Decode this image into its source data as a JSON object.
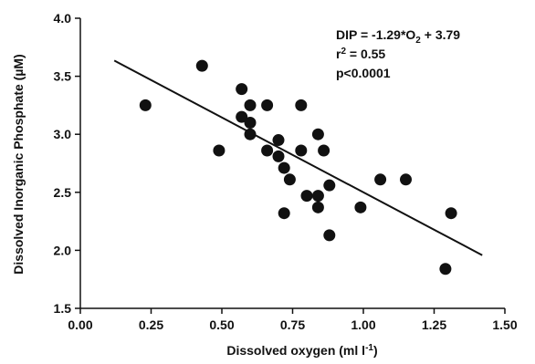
{
  "chart_data": {
    "type": "scatter",
    "title": "",
    "xlabel": "Dissolved oxygen (ml l-1)",
    "xlabel_parts": {
      "main": "Dissolved oxygen (ml l",
      "sup": "-1",
      "close": ")"
    },
    "ylabel": "Dissolved Inorganic Phosphate (µM)",
    "xlim": [
      0.0,
      1.5
    ],
    "ylim": [
      1.5,
      4.0
    ],
    "x_ticks": [
      "0.00",
      "0.25",
      "0.50",
      "0.75",
      "1.00",
      "1.25",
      "1.50"
    ],
    "y_ticks": [
      "1.5",
      "2.0",
      "2.5",
      "3.0",
      "3.5",
      "4.0"
    ],
    "grid": false,
    "legend": "none",
    "colors": {
      "points": "#111111",
      "line": "#111111"
    },
    "points": [
      {
        "x": 0.23,
        "y": 3.25
      },
      {
        "x": 0.43,
        "y": 3.59
      },
      {
        "x": 0.49,
        "y": 2.86
      },
      {
        "x": 0.57,
        "y": 3.39
      },
      {
        "x": 0.57,
        "y": 3.15
      },
      {
        "x": 0.6,
        "y": 3.25
      },
      {
        "x": 0.6,
        "y": 3.1
      },
      {
        "x": 0.6,
        "y": 3.0
      },
      {
        "x": 0.66,
        "y": 3.25
      },
      {
        "x": 0.66,
        "y": 2.86
      },
      {
        "x": 0.7,
        "y": 2.95
      },
      {
        "x": 0.7,
        "y": 2.81
      },
      {
        "x": 0.72,
        "y": 2.71
      },
      {
        "x": 0.72,
        "y": 2.32
      },
      {
        "x": 0.74,
        "y": 2.61
      },
      {
        "x": 0.78,
        "y": 3.25
      },
      {
        "x": 0.78,
        "y": 2.86
      },
      {
        "x": 0.8,
        "y": 2.47
      },
      {
        "x": 0.84,
        "y": 3.0
      },
      {
        "x": 0.84,
        "y": 2.47
      },
      {
        "x": 0.84,
        "y": 2.37
      },
      {
        "x": 0.86,
        "y": 2.86
      },
      {
        "x": 0.88,
        "y": 2.56
      },
      {
        "x": 0.88,
        "y": 2.13
      },
      {
        "x": 0.99,
        "y": 2.37
      },
      {
        "x": 1.06,
        "y": 2.61
      },
      {
        "x": 1.15,
        "y": 2.61
      },
      {
        "x": 1.29,
        "y": 1.84
      },
      {
        "x": 1.31,
        "y": 2.32
      }
    ],
    "regression": {
      "slope": -1.29,
      "intercept": 3.79,
      "x_start": 0.12,
      "x_end": 1.42
    },
    "annotations": {
      "equation_parts": {
        "main": "DIP = -1.29*O",
        "sub": "2",
        "rest": " + 3.79"
      },
      "r2_parts": {
        "main": "r",
        "sup": "2",
        "rest": " = 0.55"
      },
      "p_value": "p<0.0001"
    }
  }
}
